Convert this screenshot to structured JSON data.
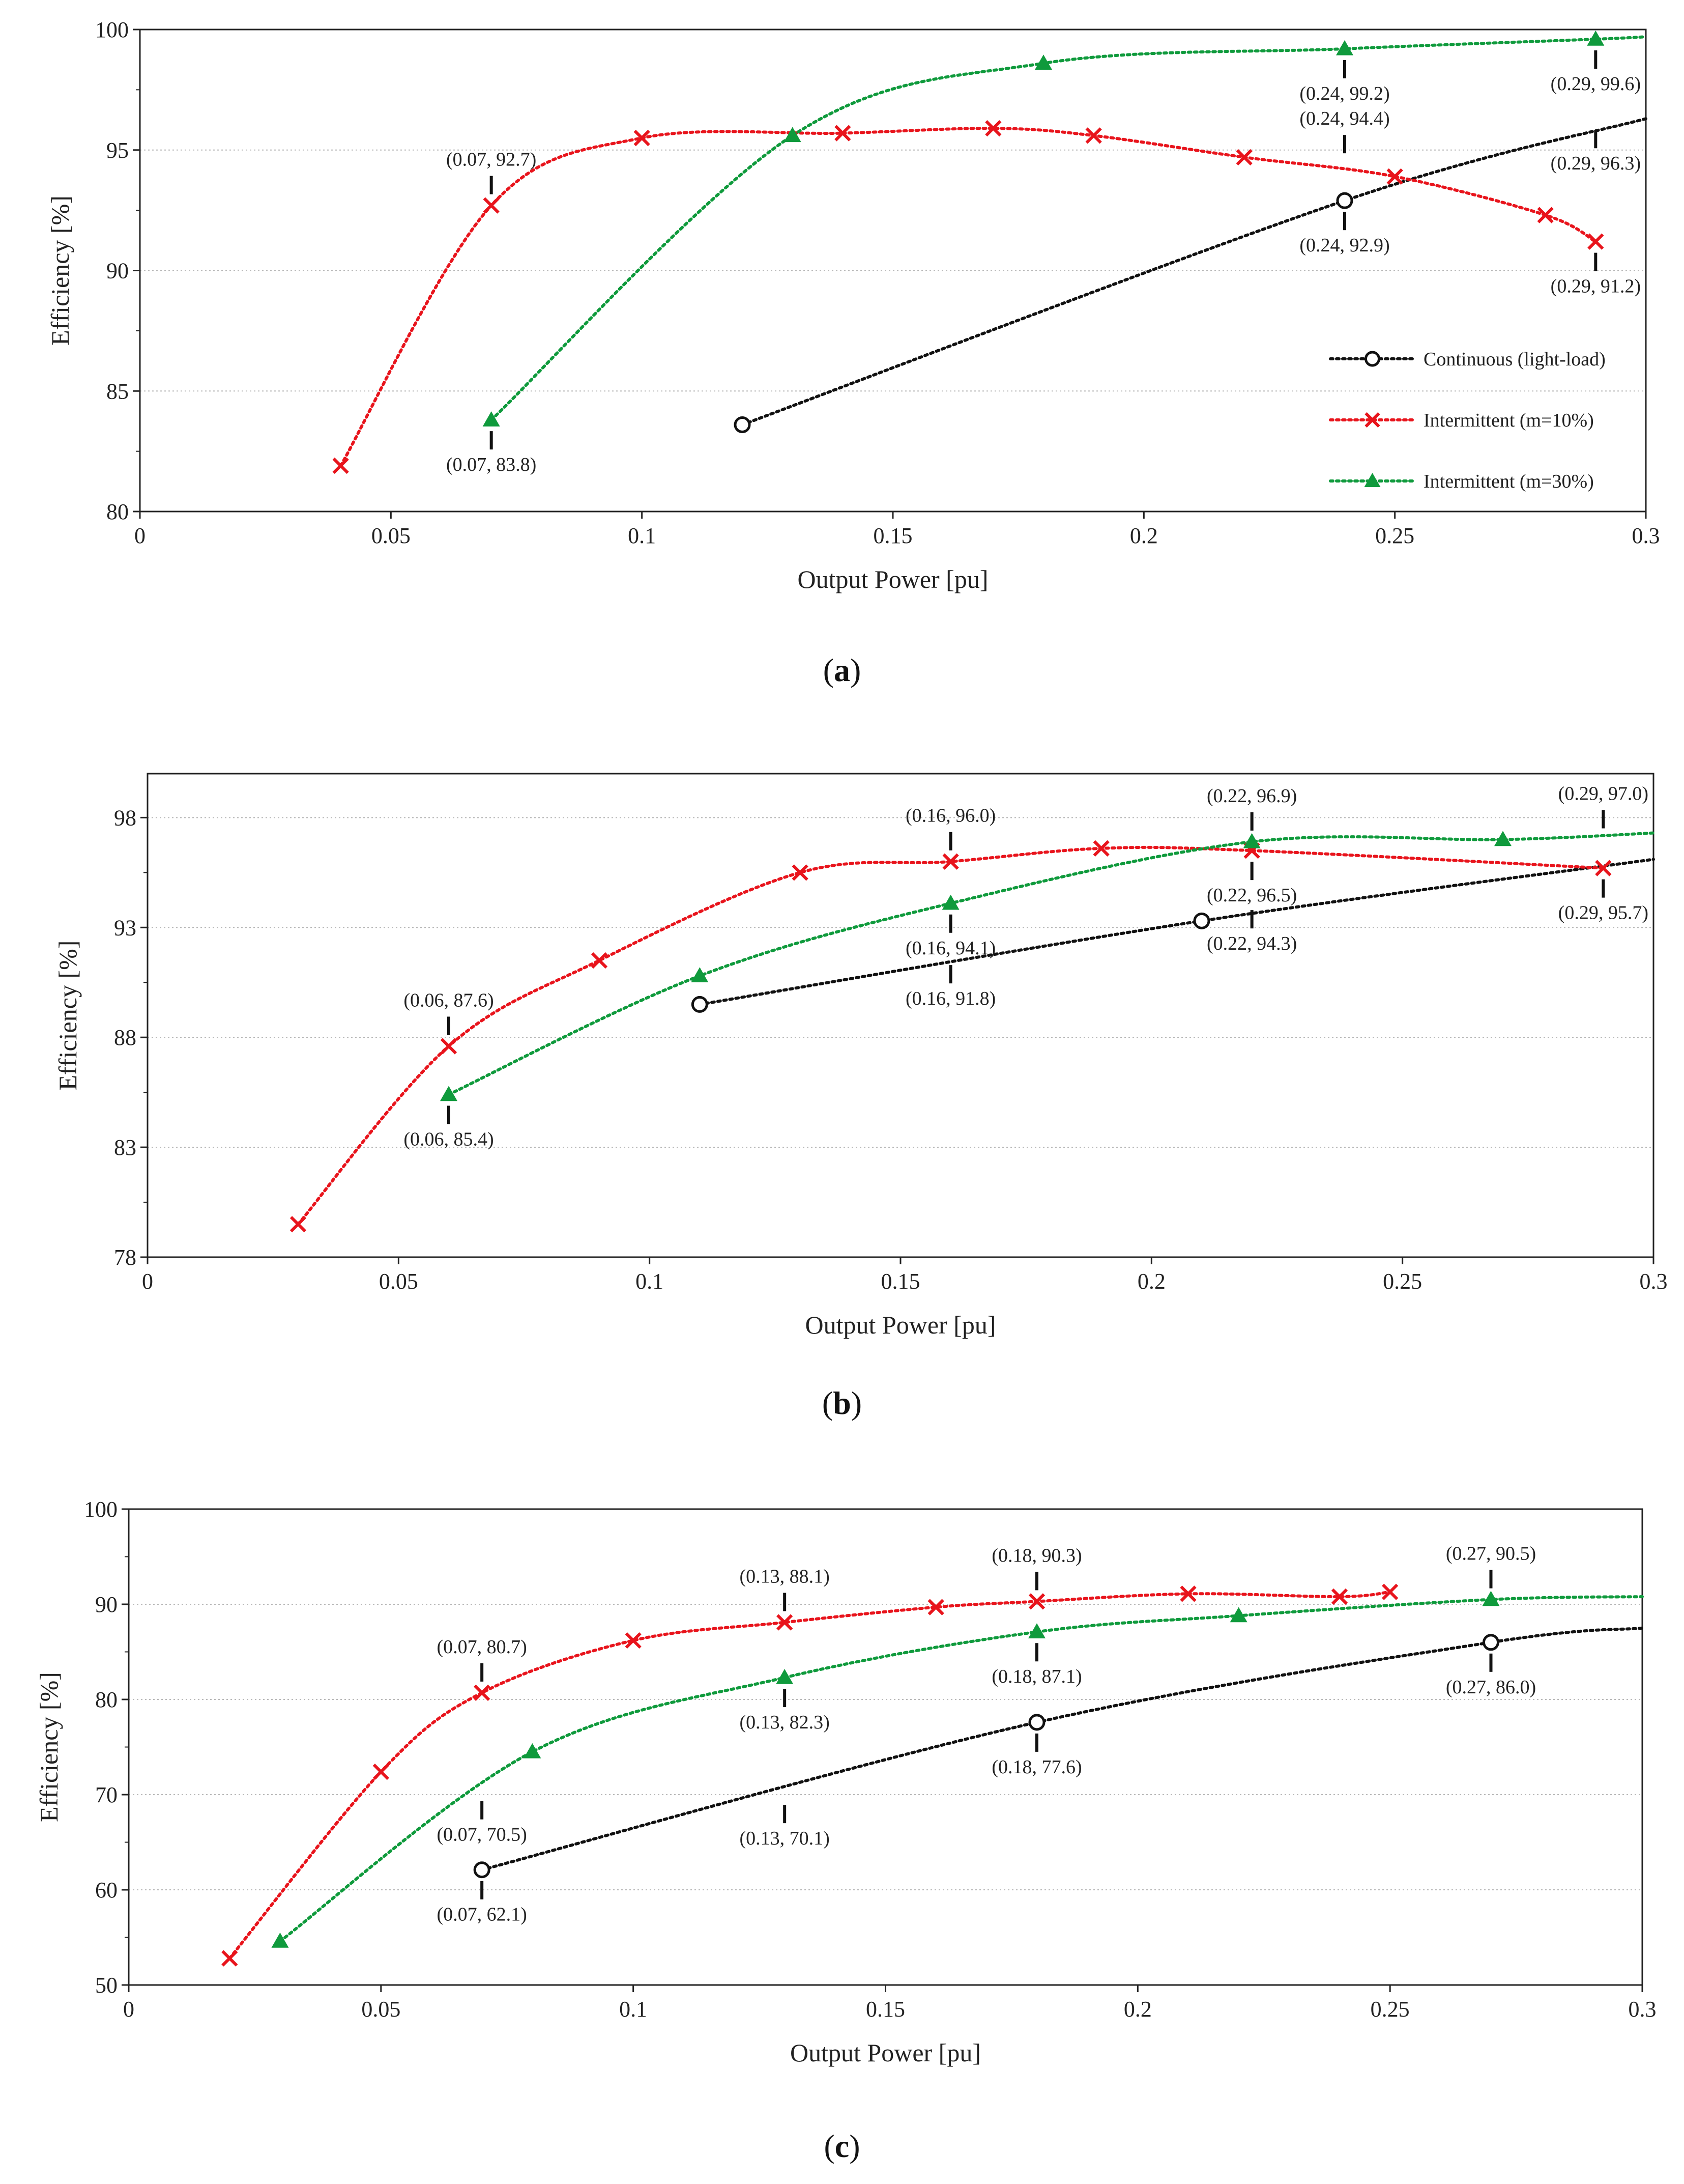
{
  "colors": {
    "continuous": "#111111",
    "m10": "#e8141c",
    "m30": "#0f9a3c",
    "grid": "#b8b8b8",
    "axis": "#222222"
  },
  "legend": {
    "continuous": "Continuous (light-load)",
    "m10": "Intermittent (m=10%)",
    "m30": "Intermittent (m=30%)"
  },
  "chart_data": [
    {
      "type": "line",
      "panel_label": "a",
      "xlabel": "Output Power [pu]",
      "ylabel": "Efficiency [%]",
      "xlim": [
        0,
        0.3
      ],
      "ylim": [
        80,
        100
      ],
      "x_ticks": [
        "0",
        "0.05",
        "0.1",
        "0.15",
        "0.2",
        "0.25",
        "0.3"
      ],
      "y_ticks": [
        "80",
        "85",
        "90",
        "95",
        "100"
      ],
      "grid": "horizontal",
      "legend_position": "lower-right",
      "series": [
        {
          "key": "continuous",
          "name": "Continuous (light-load)",
          "marker": "circle",
          "x": [
            0.12,
            0.24
          ],
          "y": [
            83.6,
            92.9
          ],
          "curve_to": [
            0.3,
            96.3
          ]
        },
        {
          "key": "m10",
          "name": "Intermittent (m=10%)",
          "marker": "x",
          "x": [
            0.04,
            0.07,
            0.1,
            0.14,
            0.17,
            0.19,
            0.22,
            0.25,
            0.28,
            0.29
          ],
          "y": [
            81.9,
            92.7,
            95.5,
            95.7,
            95.9,
            95.6,
            94.7,
            93.9,
            92.3,
            91.2
          ]
        },
        {
          "key": "m30",
          "name": "Intermittent (m=30%)",
          "marker": "triangle",
          "x": [
            0.07,
            0.13,
            0.18,
            0.24,
            0.29
          ],
          "y": [
            83.8,
            95.6,
            98.6,
            99.2,
            99.6
          ],
          "curve_to": [
            0.3,
            99.7
          ]
        }
      ],
      "annotations": [
        {
          "text": "(0.07, 92.7)",
          "x": 0.07,
          "y": 92.7,
          "dir": "up"
        },
        {
          "text": "(0.07, 83.8)",
          "x": 0.07,
          "y": 83.8,
          "dir": "down"
        },
        {
          "text": "(0.24, 99.2)",
          "x": 0.24,
          "y": 99.2,
          "dir": "down"
        },
        {
          "text": "(0.29, 99.6)",
          "x": 0.29,
          "y": 99.6,
          "dir": "down"
        },
        {
          "text": "(0.24, 94.4)",
          "x": 0.24,
          "y": 94.4,
          "dir": "up"
        },
        {
          "text": "(0.29, 96.3)",
          "x": 0.29,
          "y": 96.3,
          "dir": "down"
        },
        {
          "text": "(0.24, 92.9)",
          "x": 0.24,
          "y": 92.9,
          "dir": "down"
        },
        {
          "text": "(0.29, 91.2)",
          "x": 0.29,
          "y": 91.2,
          "dir": "down"
        }
      ]
    },
    {
      "type": "line",
      "panel_label": "b",
      "xlabel": "Output Power [pu]",
      "ylabel": "Efficiency [%]",
      "xlim": [
        0,
        0.3
      ],
      "ylim": [
        78,
        100
      ],
      "x_ticks": [
        "0",
        "0.05",
        "0.1",
        "0.15",
        "0.2",
        "0.25",
        "0.3"
      ],
      "y_ticks": [
        "78",
        "83",
        "88",
        "93",
        "98"
      ],
      "grid": "horizontal",
      "series": [
        {
          "key": "continuous",
          "name": "Continuous (light-load)",
          "marker": "circle",
          "x": [
            0.11,
            0.21
          ],
          "y": [
            89.5,
            93.3
          ],
          "curve_to": [
            0.3,
            96.1
          ]
        },
        {
          "key": "m10",
          "name": "Intermittent (m=10%)",
          "marker": "x",
          "x": [
            0.03,
            0.06,
            0.09,
            0.13,
            0.16,
            0.19,
            0.22,
            0.29
          ],
          "y": [
            79.5,
            87.6,
            91.5,
            95.5,
            96.0,
            96.6,
            96.5,
            95.7
          ]
        },
        {
          "key": "m30",
          "name": "Intermittent (m=30%)",
          "marker": "triangle",
          "x": [
            0.06,
            0.11,
            0.16,
            0.22,
            0.27
          ],
          "y": [
            85.4,
            90.8,
            94.1,
            96.9,
            97.0
          ],
          "curve_to": [
            0.3,
            97.3
          ]
        }
      ],
      "annotations": [
        {
          "text": "(0.06, 87.6)",
          "x": 0.06,
          "y": 87.6,
          "dir": "up"
        },
        {
          "text": "(0.06, 85.4)",
          "x": 0.06,
          "y": 85.4,
          "dir": "down"
        },
        {
          "text": "(0.16, 96.0)",
          "x": 0.16,
          "y": 96.0,
          "dir": "up"
        },
        {
          "text": "(0.16, 94.1)",
          "x": 0.16,
          "y": 94.1,
          "dir": "down"
        },
        {
          "text": "(0.16, 91.8)",
          "x": 0.16,
          "y": 91.8,
          "dir": "down"
        },
        {
          "text": "(0.22, 96.9)",
          "x": 0.22,
          "y": 96.9,
          "dir": "up"
        },
        {
          "text": "(0.22, 96.5)",
          "x": 0.22,
          "y": 96.5,
          "dir": "down"
        },
        {
          "text": "(0.22, 94.3)",
          "x": 0.22,
          "y": 94.3,
          "dir": "down"
        },
        {
          "text": "(0.29, 97.0)",
          "x": 0.29,
          "y": 97.0,
          "dir": "up"
        },
        {
          "text": "(0.29, 95.7)",
          "x": 0.29,
          "y": 95.7,
          "dir": "down"
        }
      ]
    },
    {
      "type": "line",
      "panel_label": "c",
      "xlabel": "Output Power [pu]",
      "ylabel": "Efficiency [%]",
      "xlim": [
        0,
        0.3
      ],
      "ylim": [
        50,
        100
      ],
      "x_ticks": [
        "0",
        "0.05",
        "0.1",
        "0.15",
        "0.2",
        "0.25",
        "0.3"
      ],
      "y_ticks": [
        "50",
        "60",
        "70",
        "80",
        "90",
        "100"
      ],
      "grid": "horizontal",
      "series": [
        {
          "key": "continuous",
          "name": "Continuous (light-load)",
          "marker": "circle",
          "x": [
            0.07,
            0.18,
            0.27
          ],
          "y": [
            62.1,
            77.6,
            86.0
          ],
          "curve_to": [
            0.3,
            87.5
          ]
        },
        {
          "key": "m10",
          "name": "Intermittent (m=10%)",
          "marker": "x",
          "x": [
            0.02,
            0.05,
            0.07,
            0.1,
            0.13,
            0.16,
            0.18,
            0.21,
            0.24,
            0.25
          ],
          "y": [
            52.8,
            72.4,
            80.7,
            86.2,
            88.1,
            89.7,
            90.3,
            91.1,
            90.8,
            91.3
          ]
        },
        {
          "key": "m30",
          "name": "Intermittent (m=30%)",
          "marker": "triangle",
          "x": [
            0.03,
            0.08,
            0.13,
            0.18,
            0.22,
            0.27
          ],
          "y": [
            54.6,
            74.5,
            82.3,
            87.1,
            88.8,
            90.5
          ],
          "curve_to": [
            0.3,
            90.8
          ]
        }
      ],
      "annotations": [
        {
          "text": "(0.07, 80.7)",
          "x": 0.07,
          "y": 80.7,
          "dir": "up"
        },
        {
          "text": "(0.07, 70.5)",
          "x": 0.07,
          "y": 70.5,
          "dir": "down"
        },
        {
          "text": "(0.07, 62.1)",
          "x": 0.07,
          "y": 62.1,
          "dir": "down"
        },
        {
          "text": "(0.13, 88.1)",
          "x": 0.13,
          "y": 88.1,
          "dir": "up"
        },
        {
          "text": "(0.13, 82.3)",
          "x": 0.13,
          "y": 82.3,
          "dir": "down"
        },
        {
          "text": "(0.13, 70.1)",
          "x": 0.13,
          "y": 70.1,
          "dir": "down"
        },
        {
          "text": "(0.18, 90.3)",
          "x": 0.18,
          "y": 90.3,
          "dir": "up"
        },
        {
          "text": "(0.18, 87.1)",
          "x": 0.18,
          "y": 87.1,
          "dir": "down"
        },
        {
          "text": "(0.18, 77.6)",
          "x": 0.18,
          "y": 77.6,
          "dir": "down"
        },
        {
          "text": "(0.27, 90.5)",
          "x": 0.27,
          "y": 90.5,
          "dir": "up"
        },
        {
          "text": "(0.27, 86.0)",
          "x": 0.27,
          "y": 86.0,
          "dir": "down"
        }
      ]
    }
  ]
}
